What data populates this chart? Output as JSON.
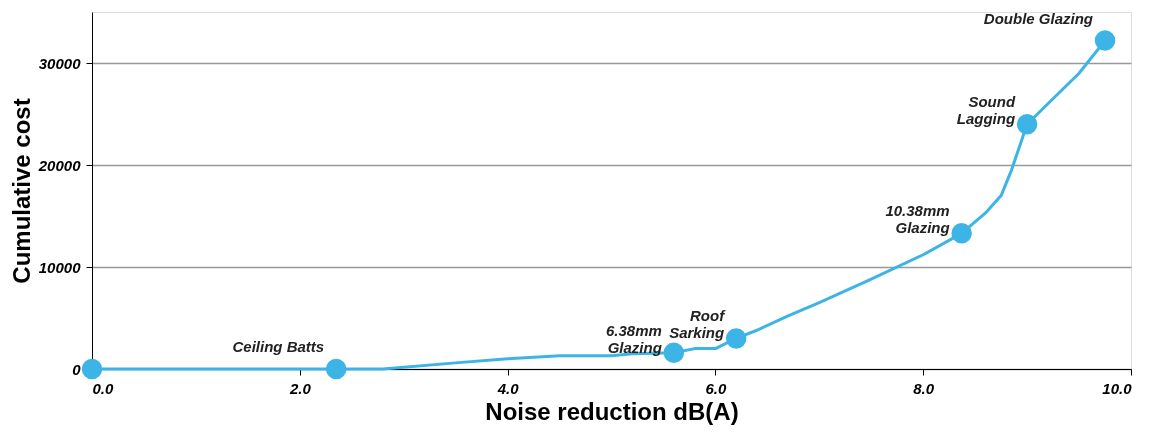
{
  "chart_data": {
    "type": "line",
    "xlabel": "Noise reduction dB(A)",
    "ylabel": "Cumulative cost",
    "xlim": [
      0,
      10
    ],
    "xticks": [
      {
        "value": 0,
        "label": "0.0"
      },
      {
        "value": 2,
        "label": "2.0"
      },
      {
        "value": 4,
        "label": "4.0"
      },
      {
        "value": 6,
        "label": "6.0"
      },
      {
        "value": 8,
        "label": "8.0"
      },
      {
        "value": 10,
        "label": "10.0"
      }
    ],
    "ylim": [
      0,
      35000
    ],
    "yticks": [
      0,
      10000,
      20000,
      30000
    ],
    "grid": "y",
    "series": [
      {
        "type": "line",
        "color": "#3db4e6",
        "marker": "none",
        "line_style": "solid",
        "x": [
          0,
          2.8,
          3.5,
          4.0,
          4.5,
          5.0,
          5.2,
          5.6,
          5.8,
          6.0,
          6.2,
          6.4,
          6.7,
          7.0,
          7.5,
          8.0,
          8.37,
          8.6,
          8.75,
          8.85,
          9.0,
          9.2,
          9.5,
          9.75
        ],
        "values": [
          0,
          0,
          600,
          1000,
          1300,
          1300,
          1500,
          1600,
          2000,
          2000,
          3000,
          3800,
          5200,
          6500,
          8800,
          11200,
          13300,
          15300,
          17000,
          19500,
          24000,
          26000,
          29000,
          32200
        ]
      },
      {
        "type": "scatter",
        "color": "#3db4e6",
        "marker": "circle",
        "x": [
          0,
          2.35,
          5.6,
          6.2,
          8.37,
          9.0,
          9.75
        ],
        "values": [
          0,
          0,
          1600,
          3000,
          13300,
          24000,
          32200
        ]
      }
    ],
    "annotations": [
      {
        "text": "Ceiling Batts",
        "x": 2.35,
        "y": 0
      },
      {
        "text": "6.38mm\nGlazing",
        "x": 5.6,
        "y": 1600
      },
      {
        "text": "Roof\nSarking",
        "x": 6.2,
        "y": 3000
      },
      {
        "text": "10.38mm\nGlazing",
        "x": 8.37,
        "y": 13300
      },
      {
        "text": "Sound\nLagging",
        "x": 9.0,
        "y": 24000
      },
      {
        "text": "Double  Glazing",
        "x": 9.75,
        "y": 32200
      }
    ]
  }
}
